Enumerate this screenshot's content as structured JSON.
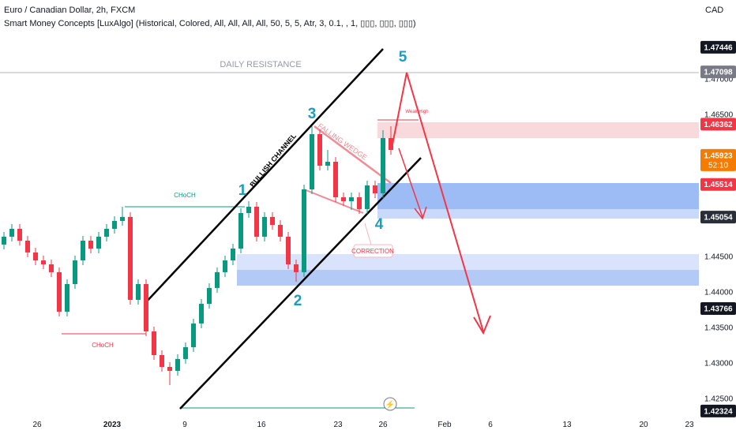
{
  "chart_data": {
    "type": "candlestick",
    "title": "Euro / Canadian Dollar, 2h, FXCM",
    "subtitle": "Smart Money Concepts [LuxAlgo] (Historical, Colored, All, All, All, All, 50, 5, 5, Atr, 3, 0.1, , 1, ▯▯▯, ▯▯▯, ▯▯▯)",
    "currency": "CAD",
    "up_color": "#089981",
    "down_color": "#f23645",
    "ylim": [
      1.42222,
      1.48111
    ],
    "yticks": [
      {
        "value": 1.47,
        "label": "1.47000"
      },
      {
        "value": 1.465,
        "label": "1.46500"
      },
      {
        "value": 1.445,
        "label": "1.44500"
      },
      {
        "value": 1.44,
        "label": "1.44000"
      },
      {
        "value": 1.435,
        "label": "1.43500"
      },
      {
        "value": 1.43,
        "label": "1.43000"
      },
      {
        "value": 1.425,
        "label": "1.42500"
      }
    ],
    "grid": false,
    "x_labels": [
      "26",
      "2023",
      "9",
      "16",
      "23",
      "26",
      "Feb",
      "6",
      "13",
      "20",
      "23"
    ],
    "series": {
      "open": [
        1.44667,
        1.44778,
        1.44889,
        1.44722,
        1.44556,
        1.44444,
        1.44389,
        1.44278,
        1.43722,
        1.44111,
        1.44444,
        1.44722,
        1.44611,
        1.44778,
        1.44889,
        1.45,
        1.45056,
        1.43889,
        1.44111,
        1.43444,
        1.43111,
        1.42944,
        1.42889,
        1.43056,
        1.43222,
        1.43556,
        1.43833,
        1.44056,
        1.44278,
        1.44444,
        1.44611,
        1.45111,
        1.452,
        1.44778,
        1.45056,
        1.44944,
        1.44778,
        1.44389,
        1.44278,
        1.45444,
        1.46222,
        1.45778,
        1.45833,
        1.45333,
        1.45278,
        1.45333,
        1.45167,
        1.455,
        1.45389,
        1.46167
      ],
      "high": [
        1.44844,
        1.44956,
        1.44956,
        1.44789,
        1.44622,
        1.44511,
        1.44456,
        1.44344,
        1.44178,
        1.44511,
        1.44789,
        1.44789,
        1.44844,
        1.44956,
        1.45067,
        1.452,
        1.45122,
        1.44178,
        1.44178,
        1.43511,
        1.43178,
        1.43011,
        1.43122,
        1.43289,
        1.43622,
        1.439,
        1.44122,
        1.44344,
        1.44511,
        1.44678,
        1.45178,
        1.45278,
        1.45267,
        1.45122,
        1.45122,
        1.45011,
        1.44844,
        1.44456,
        1.45511,
        1.46333,
        1.46289,
        1.46,
        1.459,
        1.454,
        1.454,
        1.454,
        1.45567,
        1.45567,
        1.46278,
        1.46333
      ],
      "low": [
        1.446,
        1.44711,
        1.44656,
        1.44489,
        1.44378,
        1.44322,
        1.44211,
        1.43656,
        1.43656,
        1.44044,
        1.44378,
        1.44544,
        1.44544,
        1.44711,
        1.44822,
        1.44933,
        1.43822,
        1.43822,
        1.43378,
        1.43044,
        1.42878,
        1.42689,
        1.42822,
        1.42989,
        1.43156,
        1.43489,
        1.43767,
        1.43989,
        1.44211,
        1.44378,
        1.44544,
        1.45044,
        1.44711,
        1.44711,
        1.44878,
        1.44711,
        1.44322,
        1.44144,
        1.44211,
        1.45378,
        1.45711,
        1.45711,
        1.45267,
        1.45211,
        1.45156,
        1.451,
        1.451,
        1.45322,
        1.45322,
        1.45933
      ],
      "close": [
        1.44778,
        1.44889,
        1.44722,
        1.44556,
        1.44444,
        1.44389,
        1.44278,
        1.43722,
        1.44111,
        1.44444,
        1.44722,
        1.44611,
        1.44778,
        1.44889,
        1.45,
        1.45056,
        1.43889,
        1.44111,
        1.43444,
        1.43111,
        1.42944,
        1.42889,
        1.43056,
        1.43222,
        1.43556,
        1.43833,
        1.44056,
        1.44278,
        1.44444,
        1.44611,
        1.45111,
        1.452,
        1.44778,
        1.45056,
        1.44944,
        1.44778,
        1.44389,
        1.44278,
        1.45444,
        1.46222,
        1.45778,
        1.45833,
        1.45333,
        1.45278,
        1.45333,
        1.45167,
        1.455,
        1.45389,
        1.46167,
        1.46
      ]
    },
    "price_labels": [
      {
        "value": 1.47446,
        "color": "#131722"
      },
      {
        "value": 1.47098,
        "color": "#787b86"
      },
      {
        "value": 1.46362,
        "color": "#f23645"
      },
      {
        "value": 1.45923,
        "color": "#f57c00",
        "countdown": "52:10"
      },
      {
        "value": 1.45514,
        "color": "#f23645"
      },
      {
        "value": 1.45054,
        "color": "#2a2e39"
      },
      {
        "value": 1.43766,
        "color": "#131722"
      },
      {
        "value": 1.42324,
        "color": "#131722"
      }
    ],
    "annotations": [
      "DAILY RESISTANCE",
      "BULLISH CHANNEL",
      "FALLING WEDGE",
      "CORRECTION",
      "CHoCH",
      "CHoCH",
      "1",
      "2",
      "3",
      "4",
      "5",
      "Weak High"
    ]
  }
}
